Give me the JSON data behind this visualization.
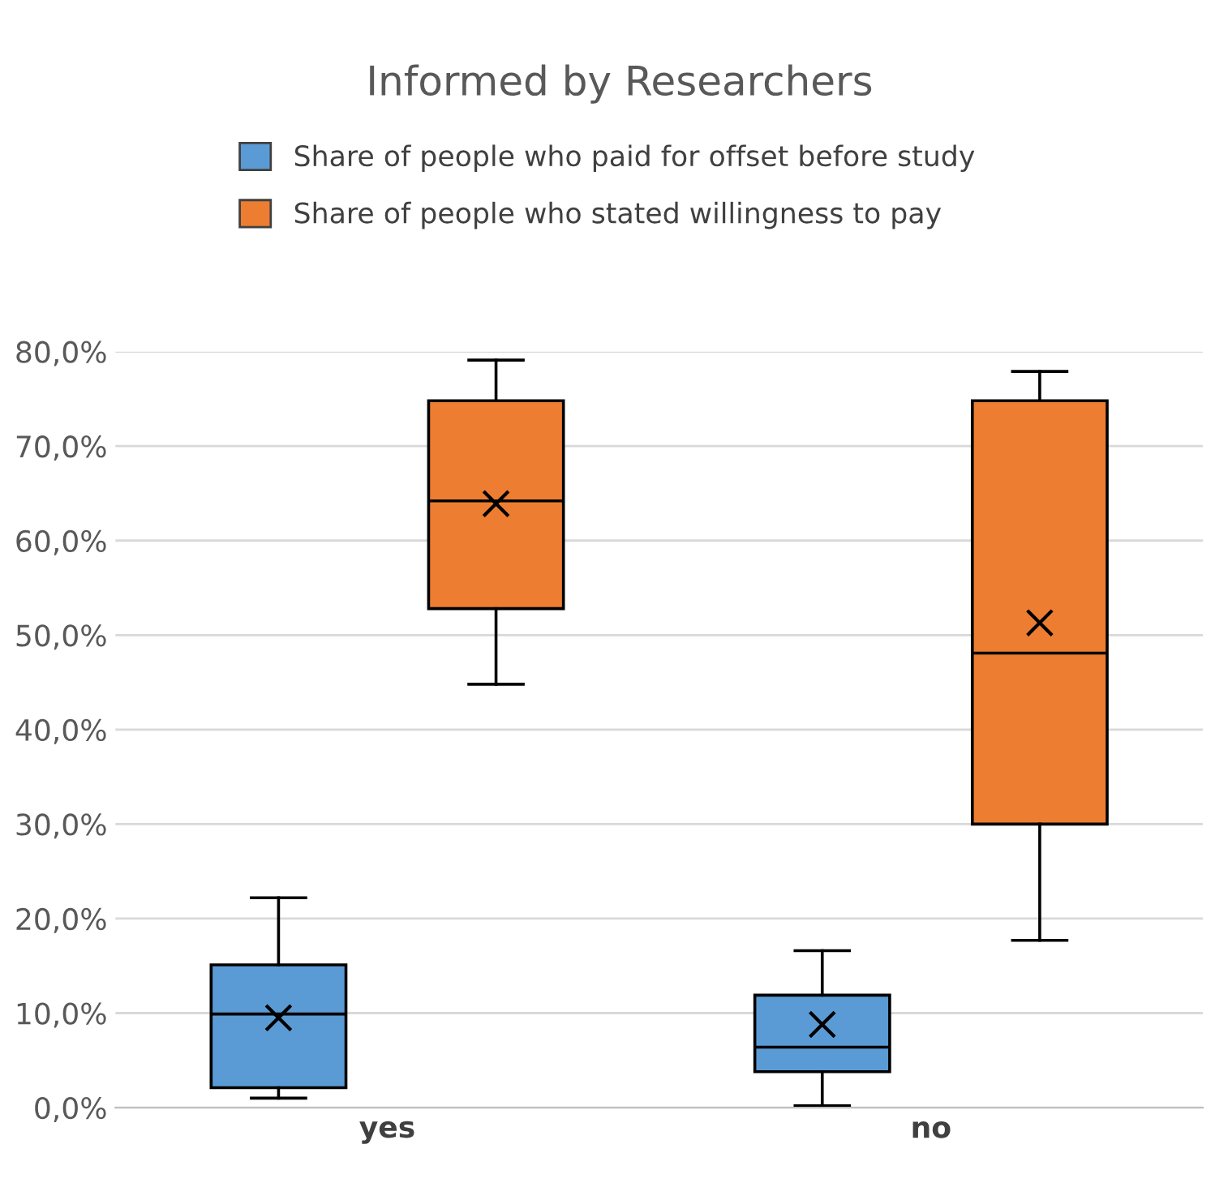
{
  "chart_data": {
    "type": "box",
    "title": "Informed by Researchers",
    "categories": [
      "yes",
      "no"
    ],
    "series": [
      {
        "name": "Share of people who paid for offset before study",
        "color": "#5b9bd5",
        "boxes": [
          {
            "low": 1.0,
            "q1": 2.1,
            "median": 9.9,
            "q3": 15.1,
            "high": 22.2,
            "mean": 9.5
          },
          {
            "low": 0.2,
            "q1": 3.8,
            "median": 6.4,
            "q3": 11.9,
            "high": 16.6,
            "mean": 8.8
          }
        ]
      },
      {
        "name": "Share of people who stated willingness to pay",
        "color": "#ed7d31",
        "boxes": [
          {
            "low": 44.8,
            "q1": 52.8,
            "median": 64.2,
            "q3": 74.8,
            "high": 79.1,
            "mean": 63.9
          },
          {
            "low": 17.7,
            "q1": 30.0,
            "median": 48.1,
            "q3": 74.8,
            "high": 77.9,
            "mean": 51.3
          }
        ]
      }
    ],
    "ylim": [
      0,
      80
    ],
    "yticks": [
      {
        "value": 0,
        "label": "0,0%"
      },
      {
        "value": 10,
        "label": "10,0%"
      },
      {
        "value": 20,
        "label": "20,0%"
      },
      {
        "value": 30,
        "label": "30,0%"
      },
      {
        "value": 40,
        "label": "40,0%"
      },
      {
        "value": 50,
        "label": "50,0%"
      },
      {
        "value": 60,
        "label": "60,0%"
      },
      {
        "value": 70,
        "label": "70,0%"
      },
      {
        "value": 80,
        "label": "80,0%"
      }
    ],
    "grid": "y",
    "legend": "top",
    "marker": "cross"
  }
}
